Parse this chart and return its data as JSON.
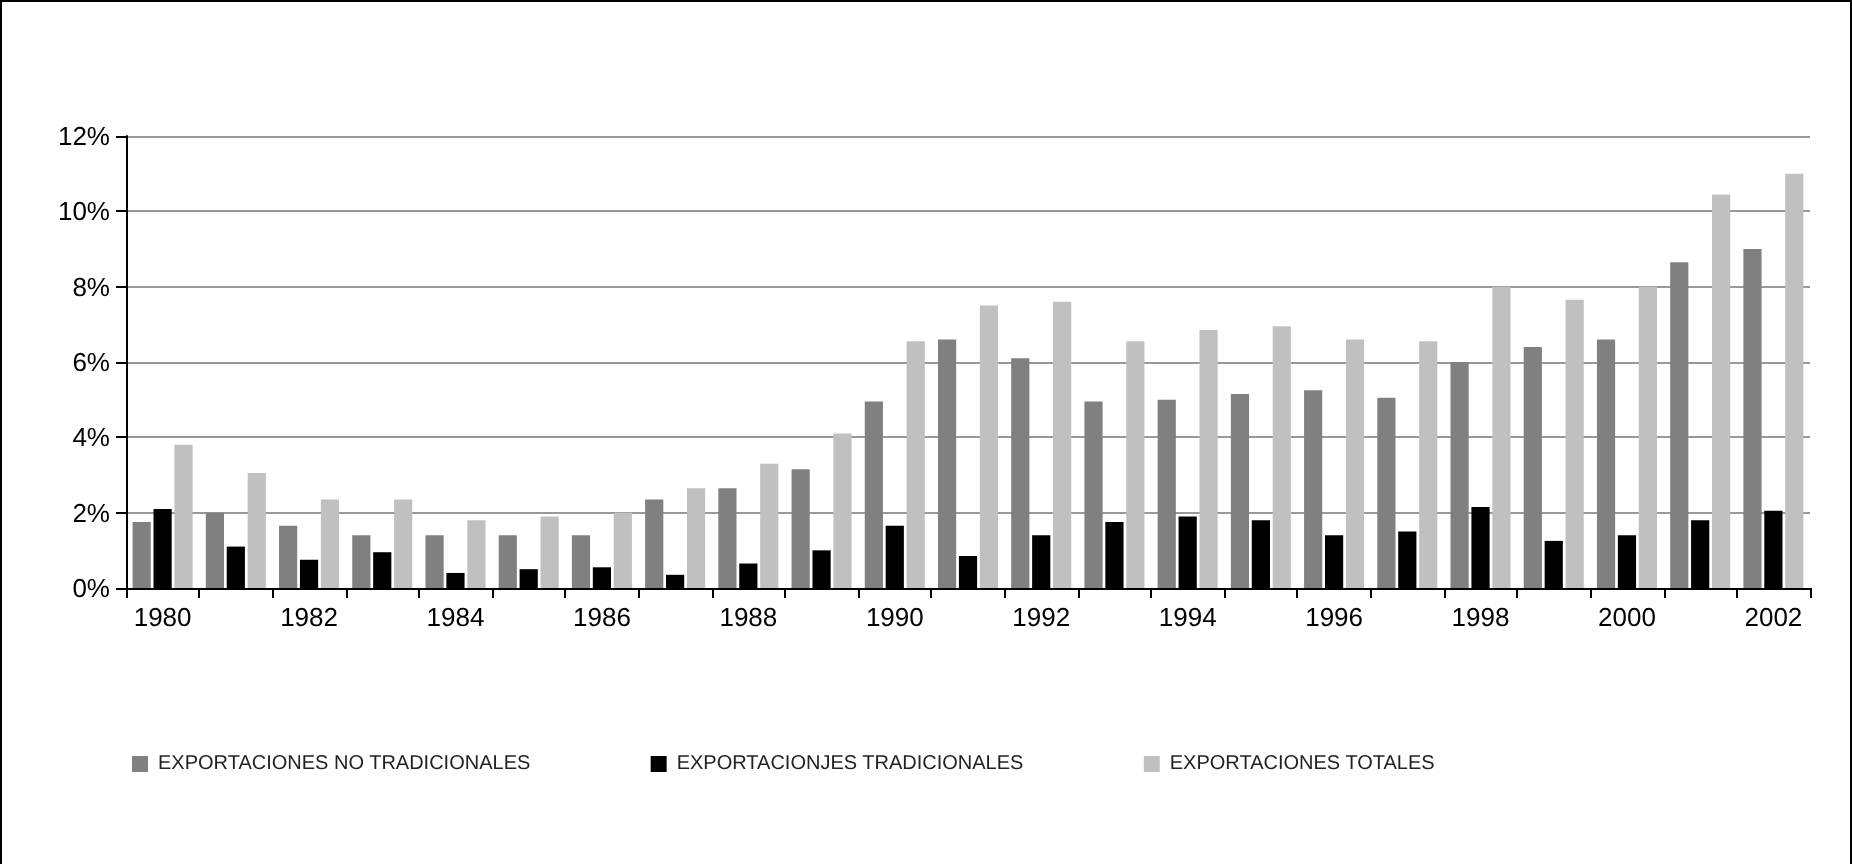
{
  "chart_data": {
    "type": "bar",
    "categories": [
      "1980",
      null,
      "1982",
      null,
      "1984",
      null,
      "1986",
      null,
      "1988",
      null,
      "1990",
      null,
      "1992",
      null,
      "1994",
      null,
      "1996",
      null,
      "1998",
      null,
      "2000",
      null,
      "2002"
    ],
    "series": [
      {
        "name": "EXPORTACIONES NO TRADICIONALES",
        "color": "#808080",
        "values": [
          1.75,
          2.0,
          1.65,
          1.4,
          1.4,
          1.4,
          1.4,
          2.35,
          2.65,
          3.15,
          4.95,
          6.6,
          6.1,
          4.95,
          5.0,
          5.15,
          5.25,
          5.05,
          6.0,
          6.4,
          6.6,
          8.65,
          9.0
        ]
      },
      {
        "name": "EXPORTACIONJES TRADICIONALES",
        "color": "#000000",
        "values": [
          2.1,
          1.1,
          0.75,
          0.95,
          0.4,
          0.5,
          0.55,
          0.35,
          0.65,
          1.0,
          1.65,
          0.85,
          1.4,
          1.75,
          1.9,
          1.8,
          1.4,
          1.5,
          2.15,
          1.25,
          1.4,
          1.8,
          2.05
        ]
      },
      {
        "name": "EXPORTACIONES TOTALES",
        "color": "#c0c0c0",
        "values": [
          3.8,
          3.05,
          2.35,
          2.35,
          1.8,
          1.9,
          2.0,
          2.65,
          3.3,
          4.1,
          6.55,
          7.5,
          7.6,
          6.55,
          6.85,
          6.95,
          6.6,
          6.55,
          8.0,
          7.65,
          8.0,
          10.45,
          11.0
        ]
      }
    ],
    "ylim": [
      0,
      12
    ],
    "yticks": [
      {
        "value": 0,
        "label": "0%"
      },
      {
        "value": 2,
        "label": "2%"
      },
      {
        "value": 4,
        "label": "4%"
      },
      {
        "value": 6,
        "label": "6%"
      },
      {
        "value": 8,
        "label": "8%"
      },
      {
        "value": 10,
        "label": "10%"
      },
      {
        "value": 12,
        "label": "12%"
      }
    ],
    "grid": "y",
    "legend": "bottom"
  }
}
